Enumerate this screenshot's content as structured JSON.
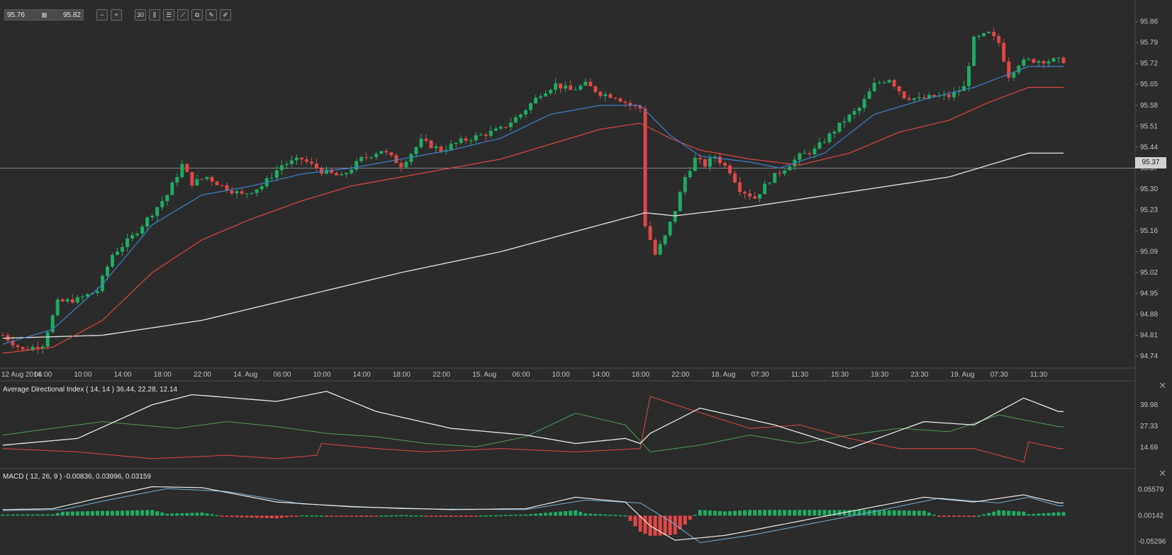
{
  "toolbar": {
    "bid": "95.76",
    "ask": "95.82",
    "buttons": [
      {
        "name": "zoom-out-button",
        "icon": "zoom-out-icon",
        "glyph": "−"
      },
      {
        "name": "zoom-in-button",
        "icon": "zoom-in-icon",
        "glyph": "+"
      },
      {
        "name": "timeframe-button",
        "icon": "timeframe-icon",
        "glyph": "30"
      },
      {
        "name": "chart-type-button",
        "icon": "candles-icon",
        "glyph": "⫼"
      },
      {
        "name": "indicators-button",
        "icon": "sliders-icon",
        "glyph": "☰"
      },
      {
        "name": "draw-line-button",
        "icon": "line-tool-icon",
        "glyph": "⟋"
      },
      {
        "name": "copy-button",
        "icon": "copy-icon",
        "glyph": "⧉"
      },
      {
        "name": "edit-button",
        "icon": "edit-icon",
        "glyph": "✎"
      },
      {
        "name": "pencil-button",
        "icon": "pencil-icon",
        "glyph": "✐"
      }
    ]
  },
  "current_price": "95.37",
  "colors": {
    "background": "#2b2b2b",
    "grid": "#3a3a3a",
    "axis_text": "#c0c0c0",
    "up": "#1faa62",
    "down": "#e04646",
    "ma_fast": "#3d7fc9",
    "ma_mid": "#d9463f",
    "ma_slow": "#d8d8d8",
    "adx": "#e8e8e8",
    "di_plus": "#4e9a52",
    "di_minus": "#d9463f",
    "macd_line": "#e8e8e8",
    "signal_line": "#6fb0d8"
  },
  "panels": {
    "adx_label": "Average Directional Index ( 14, 14 ) 36.44, 22.28, 12.14",
    "macd_label": "MACD ( 12, 26, 9 ) -0.00836, 0.03996, 0.03159"
  },
  "chart_data": {
    "type": "candlestick",
    "symbol_timeframe": "30",
    "x_labels": [
      "12 Aug 2014",
      "06:00",
      "10:00",
      "14:00",
      "18:00",
      "22:00",
      "14. Aug",
      "06:00",
      "10:00",
      "14:00",
      "18:00",
      "22:00",
      "15. Aug",
      "06:00",
      "10:00",
      "14:00",
      "18:00",
      "22:00",
      "18. Aug",
      "07:30",
      "11:30",
      "15:30",
      "19:30",
      "23:30",
      "19. Aug",
      "07:30",
      "11:30"
    ],
    "price_axis": {
      "ticks": [
        "95.86",
        "95.79",
        "95.72",
        "95.65",
        "95.58",
        "95.51",
        "95.44",
        "95.37",
        "95.30",
        "95.23",
        "95.16",
        "95.09",
        "95.02",
        "94.95",
        "94.88",
        "94.81",
        "94.74"
      ],
      "range": [
        94.7,
        95.89
      ]
    },
    "price_anchors": [
      [
        0,
        94.81
      ],
      [
        4,
        94.76
      ],
      [
        8,
        94.78
      ],
      [
        11,
        94.92
      ],
      [
        15,
        94.93
      ],
      [
        19,
        94.96
      ],
      [
        22,
        95.08
      ],
      [
        26,
        95.14
      ],
      [
        29,
        95.2
      ],
      [
        33,
        95.28
      ],
      [
        36,
        95.38
      ],
      [
        38,
        95.32
      ],
      [
        41,
        95.34
      ],
      [
        44,
        95.31
      ],
      [
        48,
        95.28
      ],
      [
        52,
        95.31
      ],
      [
        56,
        95.38
      ],
      [
        60,
        95.4
      ],
      [
        64,
        95.36
      ],
      [
        68,
        95.34
      ],
      [
        72,
        95.4
      ],
      [
        76,
        95.43
      ],
      [
        80,
        95.38
      ],
      [
        84,
        95.46
      ],
      [
        88,
        95.43
      ],
      [
        92,
        95.46
      ],
      [
        96,
        95.48
      ],
      [
        100,
        95.5
      ],
      [
        104,
        95.55
      ],
      [
        108,
        95.62
      ],
      [
        111,
        95.65
      ],
      [
        114,
        95.63
      ],
      [
        117,
        95.65
      ],
      [
        120,
        95.62
      ],
      [
        123,
        95.61
      ],
      [
        126,
        95.58
      ],
      [
        128,
        95.57
      ],
      [
        129,
        95.18
      ],
      [
        131,
        95.08
      ],
      [
        133,
        95.14
      ],
      [
        135,
        95.23
      ],
      [
        137,
        95.34
      ],
      [
        139,
        95.4
      ],
      [
        141,
        95.38
      ],
      [
        143,
        95.41
      ],
      [
        146,
        95.36
      ],
      [
        148,
        95.3
      ],
      [
        151,
        95.27
      ],
      [
        154,
        95.33
      ],
      [
        157,
        95.37
      ],
      [
        160,
        95.41
      ],
      [
        163,
        95.43
      ],
      [
        166,
        95.48
      ],
      [
        169,
        95.53
      ],
      [
        172,
        95.57
      ],
      [
        175,
        95.65
      ],
      [
        178,
        95.67
      ],
      [
        181,
        95.61
      ],
      [
        184,
        95.6
      ],
      [
        187,
        95.61
      ],
      [
        190,
        95.61
      ],
      [
        193,
        95.64
      ],
      [
        195,
        95.8
      ],
      [
        198,
        95.82
      ],
      [
        200,
        95.79
      ],
      [
        202,
        95.68
      ],
      [
        204,
        95.72
      ],
      [
        206,
        95.73
      ]
    ],
    "ma_fast_anchors": [
      [
        0,
        94.78
      ],
      [
        10,
        94.83
      ],
      [
        20,
        94.98
      ],
      [
        30,
        95.18
      ],
      [
        40,
        95.28
      ],
      [
        50,
        95.31
      ],
      [
        60,
        95.35
      ],
      [
        70,
        95.37
      ],
      [
        80,
        95.4
      ],
      [
        90,
        95.43
      ],
      [
        100,
        95.47
      ],
      [
        110,
        95.55
      ],
      [
        120,
        95.58
      ],
      [
        128,
        95.58
      ],
      [
        134,
        95.48
      ],
      [
        140,
        95.41
      ],
      [
        150,
        95.39
      ],
      [
        156,
        95.37
      ],
      [
        165,
        95.42
      ],
      [
        175,
        95.55
      ],
      [
        185,
        95.6
      ],
      [
        195,
        95.64
      ],
      [
        206,
        95.71
      ]
    ],
    "ma_mid_anchors": [
      [
        0,
        94.75
      ],
      [
        10,
        94.77
      ],
      [
        20,
        94.86
      ],
      [
        30,
        95.02
      ],
      [
        40,
        95.13
      ],
      [
        50,
        95.2
      ],
      [
        60,
        95.26
      ],
      [
        70,
        95.31
      ],
      [
        80,
        95.34
      ],
      [
        90,
        95.37
      ],
      [
        100,
        95.4
      ],
      [
        110,
        95.45
      ],
      [
        120,
        95.5
      ],
      [
        128,
        95.52
      ],
      [
        134,
        95.47
      ],
      [
        140,
        95.43
      ],
      [
        150,
        95.4
      ],
      [
        160,
        95.38
      ],
      [
        170,
        95.42
      ],
      [
        180,
        95.49
      ],
      [
        190,
        95.53
      ],
      [
        198,
        95.59
      ],
      [
        206,
        95.64
      ]
    ],
    "ma_slow_anchors": [
      [
        0,
        94.8
      ],
      [
        20,
        94.81
      ],
      [
        40,
        94.86
      ],
      [
        60,
        94.94
      ],
      [
        80,
        95.02
      ],
      [
        100,
        95.09
      ],
      [
        120,
        95.18
      ],
      [
        129,
        95.22
      ],
      [
        135,
        95.21
      ],
      [
        150,
        95.24
      ],
      [
        170,
        95.29
      ],
      [
        190,
        95.34
      ],
      [
        200,
        95.39
      ],
      [
        206,
        95.42
      ]
    ],
    "adx": {
      "range": [
        5,
        50
      ],
      "ticks": [
        "39.98",
        "27.33",
        "14.69"
      ],
      "adx_anchors": [
        [
          0,
          16
        ],
        [
          15,
          20
        ],
        [
          30,
          40
        ],
        [
          38,
          46
        ],
        [
          55,
          42
        ],
        [
          65,
          48
        ],
        [
          75,
          36
        ],
        [
          90,
          26
        ],
        [
          105,
          22
        ],
        [
          115,
          17
        ],
        [
          125,
          20
        ],
        [
          128,
          17
        ],
        [
          130,
          23
        ],
        [
          140,
          38
        ],
        [
          155,
          28
        ],
        [
          170,
          14
        ],
        [
          185,
          30
        ],
        [
          195,
          28
        ],
        [
          205,
          44
        ],
        [
          212,
          36
        ]
      ],
      "di_plus_anchors": [
        [
          0,
          22
        ],
        [
          10,
          26
        ],
        [
          20,
          30
        ],
        [
          35,
          26
        ],
        [
          45,
          30
        ],
        [
          55,
          27
        ],
        [
          65,
          23
        ],
        [
          75,
          21
        ],
        [
          85,
          17
        ],
        [
          95,
          15
        ],
        [
          105,
          21
        ],
        [
          115,
          35
        ],
        [
          125,
          28
        ],
        [
          130,
          12
        ],
        [
          140,
          16
        ],
        [
          150,
          22
        ],
        [
          160,
          17
        ],
        [
          170,
          22
        ],
        [
          180,
          26
        ],
        [
          190,
          24
        ],
        [
          200,
          34
        ],
        [
          212,
          27
        ]
      ],
      "di_minus_anchors": [
        [
          0,
          14
        ],
        [
          15,
          12
        ],
        [
          30,
          8
        ],
        [
          45,
          10
        ],
        [
          55,
          8
        ],
        [
          63,
          10
        ],
        [
          64,
          17
        ],
        [
          75,
          14
        ],
        [
          85,
          12
        ],
        [
          100,
          14
        ],
        [
          115,
          12
        ],
        [
          128,
          14
        ],
        [
          130,
          45
        ],
        [
          135,
          40
        ],
        [
          150,
          26
        ],
        [
          160,
          28
        ],
        [
          170,
          20
        ],
        [
          180,
          14
        ],
        [
          195,
          14
        ],
        [
          205,
          6
        ],
        [
          206,
          18
        ],
        [
          212,
          14
        ]
      ]
    },
    "macd": {
      "range": [
        -0.075,
        0.085
      ],
      "ticks": [
        "0.05579",
        "0.00142",
        "-0.05296"
      ],
      "macd_anchors": [
        [
          0,
          0.014
        ],
        [
          10,
          0.016
        ],
        [
          20,
          0.04
        ],
        [
          30,
          0.062
        ],
        [
          40,
          0.06
        ],
        [
          55,
          0.03
        ],
        [
          70,
          0.02
        ],
        [
          90,
          0.014
        ],
        [
          105,
          0.016
        ],
        [
          115,
          0.04
        ],
        [
          125,
          0.03
        ],
        [
          130,
          -0.02
        ],
        [
          135,
          -0.05
        ],
        [
          145,
          -0.04
        ],
        [
          155,
          -0.02
        ],
        [
          170,
          0.01
        ],
        [
          185,
          0.04
        ],
        [
          195,
          0.03
        ],
        [
          205,
          0.045
        ],
        [
          212,
          0.028
        ]
      ],
      "signal_anchors": [
        [
          0,
          0.012
        ],
        [
          12,
          0.014
        ],
        [
          22,
          0.036
        ],
        [
          33,
          0.058
        ],
        [
          45,
          0.052
        ],
        [
          60,
          0.026
        ],
        [
          80,
          0.016
        ],
        [
          105,
          0.014
        ],
        [
          117,
          0.034
        ],
        [
          128,
          0.028
        ],
        [
          134,
          -0.01
        ],
        [
          140,
          -0.055
        ],
        [
          150,
          -0.04
        ],
        [
          160,
          -0.02
        ],
        [
          175,
          0.01
        ],
        [
          188,
          0.038
        ],
        [
          200,
          0.028
        ],
        [
          206,
          0.04
        ],
        [
          212,
          0.022
        ]
      ]
    }
  }
}
